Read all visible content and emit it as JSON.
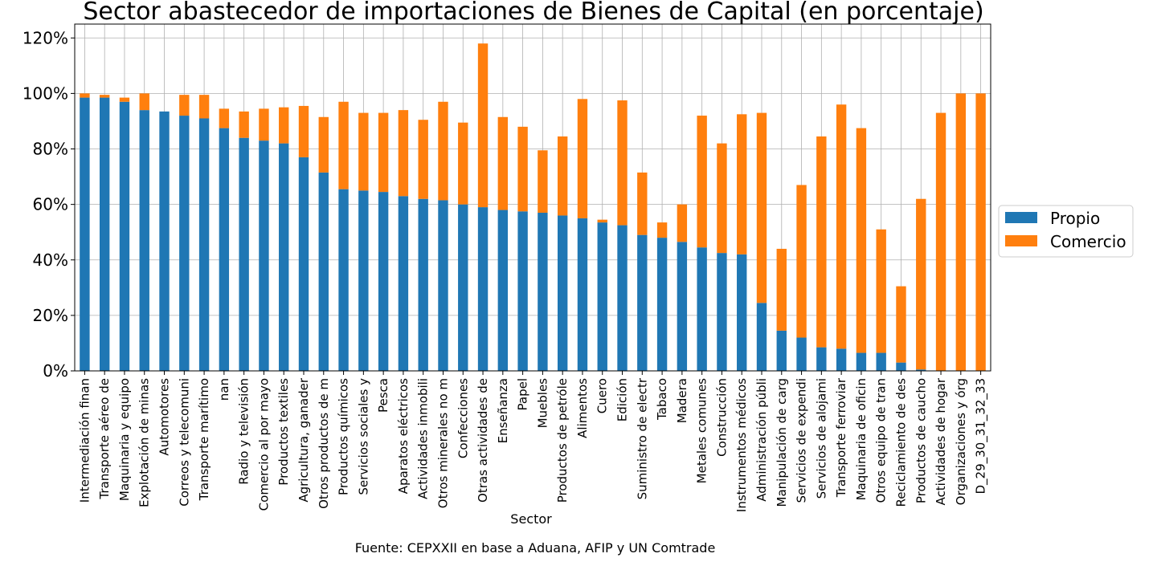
{
  "chart_data": {
    "type": "bar",
    "stacked": true,
    "title": "Sector abastecedor de importaciones de Bienes de Capital (en porcentaje)",
    "xlabel": "Sector",
    "ylabel": "",
    "ylim": [
      0,
      1.25
    ],
    "yticks": [
      "0%",
      "20%",
      "40%",
      "60%",
      "80%",
      "100%",
      "120%"
    ],
    "grid": true,
    "legend_position": "right",
    "source": "Fuente: CEPXXII en base a Aduana, AFIP y UN Comtrade",
    "colors": {
      "Propio": "#1f77b4",
      "Comercio": "#ff7f0e"
    },
    "categories": [
      "Intermediación finan",
      "Transporte aéreo de",
      "Maquinaria y equipo",
      "Explotación de minas",
      "Automotores",
      "Correos y telecomuni",
      "Transporte marítimo",
      "nan",
      "Radio y televisión",
      "Comercio al por mayo",
      "Productos textiles",
      "Agricultura, ganader",
      "Otros productos de m",
      "Productos químicos",
      "Servicios sociales y",
      "Pesca",
      "Aparatos eléctricos",
      "Actividades inmobili",
      "Otros minerales no m",
      "Confecciones",
      "Otras actividades de",
      "Enseñanza",
      "Papel",
      "Muebles",
      "Productos de petróle",
      "Alimentos",
      "Cuero",
      "Edición",
      "Suministro de electr",
      "Tabaco",
      "Madera",
      "Metales comunes",
      "Construcción",
      "Instrumentos médicos",
      "Administración públi",
      "Manipulación de carg",
      "Servicios de expendi",
      "Servicios de alojami",
      "Transporte ferroviar",
      "Maquinaria de oficin",
      "Otros equipo de tran",
      "Reciclamiento de des",
      "Productos de caucho",
      "Actividades de hogar",
      "Organizaciones y órg",
      "D_29_30_31_32_33"
    ],
    "series": [
      {
        "name": "Propio",
        "values": [
          0.985,
          0.985,
          0.97,
          0.94,
          0.935,
          0.92,
          0.91,
          0.875,
          0.84,
          0.83,
          0.82,
          0.77,
          0.715,
          0.655,
          0.65,
          0.645,
          0.63,
          0.62,
          0.615,
          0.6,
          0.59,
          0.58,
          0.575,
          0.57,
          0.56,
          0.55,
          0.535,
          0.525,
          0.49,
          0.48,
          0.465,
          0.445,
          0.425,
          0.42,
          0.245,
          0.145,
          0.12,
          0.085,
          0.08,
          0.065,
          0.065,
          0.03,
          0.005,
          0.0,
          0.0,
          0.0
        ]
      },
      {
        "name": "Comercio",
        "values": [
          0.015,
          0.01,
          0.015,
          0.06,
          0.0,
          0.075,
          0.085,
          0.07,
          0.095,
          0.115,
          0.13,
          0.185,
          0.2,
          0.315,
          0.28,
          0.285,
          0.31,
          0.285,
          0.355,
          0.295,
          0.59,
          0.335,
          0.305,
          0.225,
          0.285,
          0.43,
          0.01,
          0.45,
          0.225,
          0.055,
          0.135,
          0.475,
          0.395,
          0.505,
          0.685,
          0.295,
          0.55,
          0.76,
          0.88,
          0.81,
          0.445,
          0.275,
          0.615,
          0.93,
          1.0,
          1.0
        ]
      }
    ]
  }
}
